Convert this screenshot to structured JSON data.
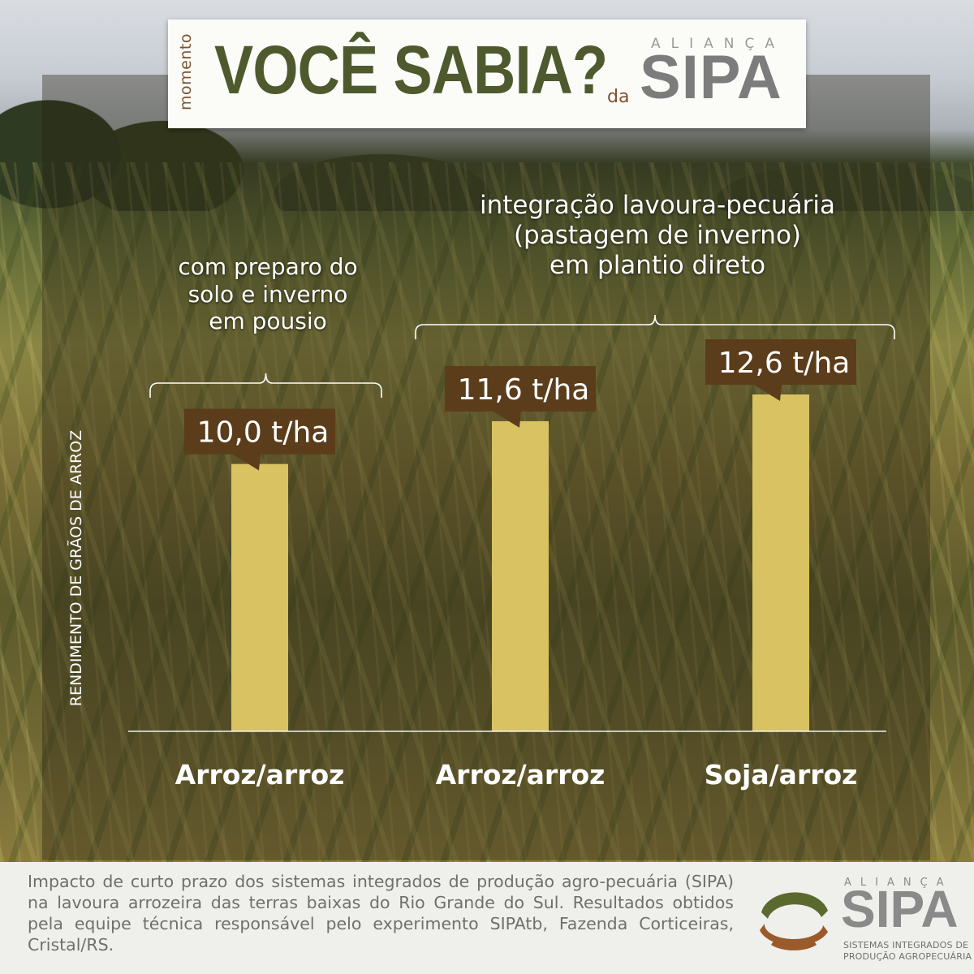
{
  "header": {
    "momento": "momento",
    "title": "VOCÊ SABIA?",
    "da": "da",
    "brand_top": "ALIANÇA",
    "brand": "SIPA"
  },
  "chart_data": {
    "type": "bar",
    "categories": [
      "Arroz/arroz",
      "Arroz/arroz",
      "Soja/arroz"
    ],
    "values": [
      10.0,
      11.6,
      12.6
    ],
    "data_labels": [
      "10,0 t/ha",
      "11,6 t/ha",
      "12,6 t/ha"
    ],
    "unit": "t/ha",
    "ylabel": "RENDIMENTO DE GRÃOS DE ARROZ",
    "ylim": [
      0,
      12.6
    ],
    "grid": false,
    "bar_color": "#d8c262",
    "label_bg_color": "#5b3d1b",
    "groups": [
      {
        "label_lines": [
          "com preparo do",
          "solo e inverno",
          "em pousio"
        ],
        "categories": [
          0
        ]
      },
      {
        "label_lines": [
          "integração lavoura-pecuária",
          "(pastagem de inverno)",
          "em plantio direto"
        ],
        "categories": [
          1,
          2
        ]
      }
    ]
  },
  "footer": {
    "text": "Impacto de curto prazo dos sistemas integrados de produção agro-pecuária (SIPA) na lavoura arrozeira das terras baixas do Rio Grande do Sul. Resultados obtidos pela equipe técnica responsável pelo experimento SIPAtb, Fazenda Corticeiras, Cristal/RS.",
    "logo_top": "ALIANÇA",
    "logo_name": "SIPA",
    "logo_sub1": "SISTEMAS INTEGRADOS DE",
    "logo_sub2": "PRODUÇÃO AGROPECUÁRIA",
    "logo_colors": [
      "#5a6a2e",
      "#9a5a2a"
    ]
  }
}
